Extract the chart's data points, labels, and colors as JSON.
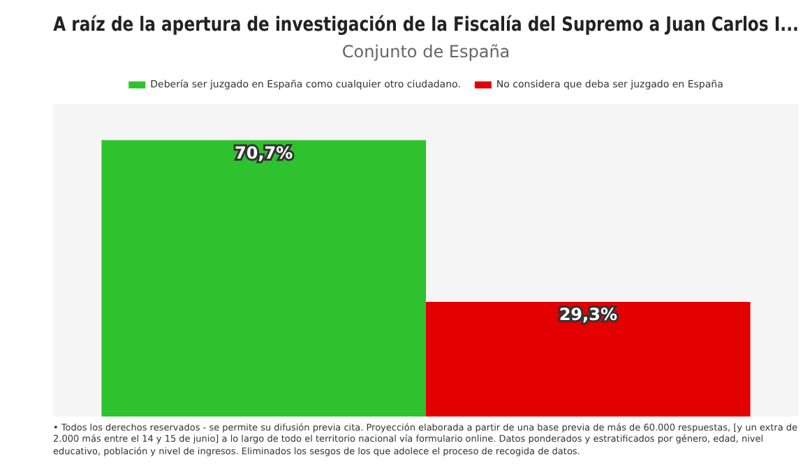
{
  "chart_data": {
    "type": "bar",
    "title": "A raíz de la apertura de investigación de la Fiscalía del Supremo a Juan Carlos I...",
    "subtitle": "Conjunto de España",
    "categories": [
      null
    ],
    "series": [
      {
        "name": "Debería ser juzgado en España como cualquier otro ciudadano.",
        "color": "#2ec22e",
        "values": [
          70.7
        ],
        "value_labels": [
          "70,7%"
        ]
      },
      {
        "name": "No considera que deba ser juzgado en España",
        "color": "#e30000",
        "values": [
          29.3
        ],
        "value_labels": [
          "29,3%"
        ]
      }
    ],
    "legend": "top",
    "annotations": [
      "• Todos los derechos reservados - se permite su difusión previa cita. Proyección elaborada a partir de una base previa de más de 60.000 respuestas, [y un extra de 2.000 más entre el 14 y 15 de junio] a lo largo de todo el territorio nacional vía formulario online. Datos ponderados y estratificados por género, edad, nivel educativo, población y nivel de ingresos. Eliminados los sesgos de los que adolece el proceso de recogida de datos."
    ]
  }
}
